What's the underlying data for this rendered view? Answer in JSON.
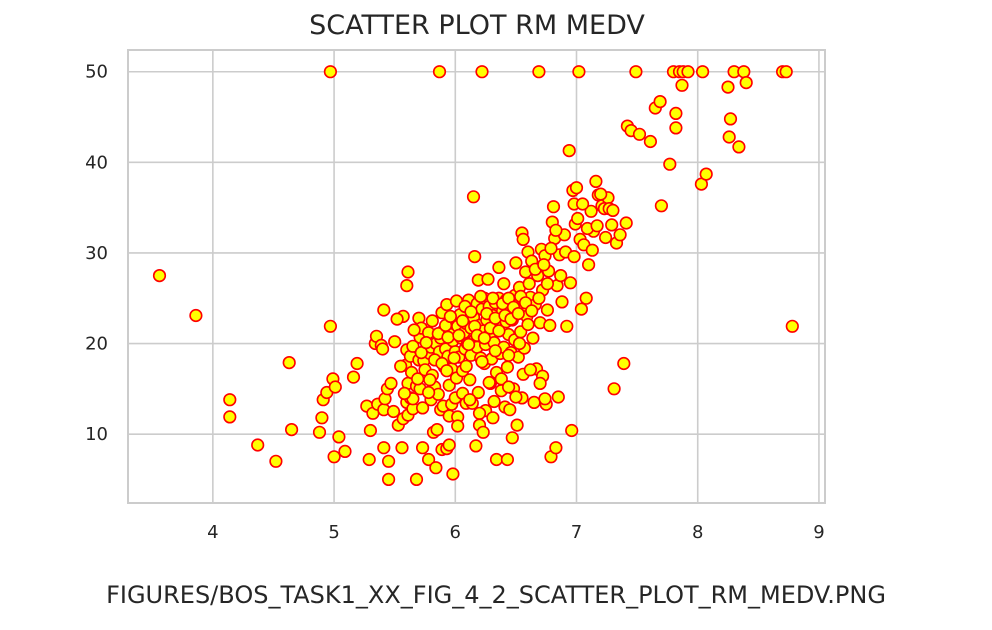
{
  "page": {
    "caption": "FIGURES/BOS_TASK1_XX_FIG_4_2_SCATTER_PLOT_RM_MEDV.PNG"
  },
  "chart_data": {
    "type": "scatter",
    "title": "SCATTER PLOT RM MEDV",
    "xlabel": "",
    "ylabel": "",
    "xlim": [
      3.3,
      9.05
    ],
    "ylim": [
      2.4,
      52.4
    ],
    "xticks": [
      4,
      5,
      6,
      7,
      8,
      9
    ],
    "yticks": [
      10,
      20,
      30,
      40,
      50
    ],
    "grid": true,
    "marker": {
      "face_color": "#ffff00",
      "edge_color": "#ff0000"
    },
    "points": [
      [
        3.56,
        27.5
      ],
      [
        3.86,
        23.1
      ],
      [
        4.14,
        13.8
      ],
      [
        4.14,
        11.9
      ],
      [
        4.37,
        8.8
      ],
      [
        4.52,
        7.0
      ],
      [
        4.63,
        17.9
      ],
      [
        4.65,
        10.5
      ],
      [
        4.88,
        10.2
      ],
      [
        4.9,
        11.8
      ],
      [
        4.91,
        13.8
      ],
      [
        4.94,
        14.6
      ],
      [
        4.97,
        21.9
      ],
      [
        4.97,
        50.0
      ],
      [
        4.99,
        16.1
      ],
      [
        5.0,
        7.5
      ],
      [
        5.01,
        15.2
      ],
      [
        5.04,
        9.7
      ],
      [
        5.09,
        8.1
      ],
      [
        5.16,
        16.3
      ],
      [
        5.19,
        17.8
      ],
      [
        5.27,
        13.1
      ],
      [
        5.29,
        7.2
      ],
      [
        5.3,
        10.4
      ],
      [
        5.32,
        12.3
      ],
      [
        5.34,
        20.0
      ],
      [
        5.35,
        20.8
      ],
      [
        5.36,
        13.3
      ],
      [
        5.39,
        19.8
      ],
      [
        5.4,
        19.4
      ],
      [
        5.41,
        8.5
      ],
      [
        5.41,
        12.7
      ],
      [
        5.41,
        23.7
      ],
      [
        5.42,
        13.9
      ],
      [
        5.44,
        15.0
      ],
      [
        5.45,
        7.0
      ],
      [
        5.45,
        5.0
      ],
      [
        5.47,
        15.6
      ],
      [
        5.5,
        20.2
      ],
      [
        5.53,
        11.0
      ],
      [
        5.56,
        8.5
      ],
      [
        5.57,
        23.0
      ],
      [
        5.57,
        11.7
      ],
      [
        5.59,
        17.6
      ],
      [
        5.6,
        13.5
      ],
      [
        5.61,
        12.1
      ],
      [
        5.6,
        19.3
      ],
      [
        5.6,
        26.4
      ],
      [
        5.61,
        27.9
      ],
      [
        5.61,
        15.6
      ],
      [
        5.63,
        14.0
      ],
      [
        5.63,
        18.6
      ],
      [
        5.64,
        16.8
      ],
      [
        5.65,
        19.7
      ],
      [
        5.65,
        12.8
      ],
      [
        5.68,
        5.0
      ],
      [
        5.68,
        15.3
      ],
      [
        5.7,
        18.2
      ],
      [
        5.7,
        22.8
      ],
      [
        5.71,
        20.7
      ],
      [
        5.71,
        15.0
      ],
      [
        5.72,
        21.7
      ],
      [
        5.73,
        8.5
      ],
      [
        5.73,
        12.9
      ],
      [
        5.74,
        18.1
      ],
      [
        5.75,
        17.1
      ],
      [
        5.76,
        19.2
      ],
      [
        5.78,
        21.2
      ],
      [
        5.78,
        7.2
      ],
      [
        5.79,
        18.9
      ],
      [
        5.8,
        19.6
      ],
      [
        5.8,
        13.8
      ],
      [
        5.81,
        22.5
      ],
      [
        5.81,
        16.5
      ],
      [
        5.82,
        10.2
      ],
      [
        5.83,
        15.2
      ],
      [
        5.84,
        20.0
      ],
      [
        5.84,
        6.3
      ],
      [
        5.85,
        10.5
      ],
      [
        5.86,
        14.4
      ],
      [
        5.87,
        19.1
      ],
      [
        5.87,
        50.0
      ],
      [
        5.88,
        12.7
      ],
      [
        5.88,
        20.6
      ],
      [
        5.89,
        23.4
      ],
      [
        5.89,
        8.3
      ],
      [
        5.9,
        13.1
      ],
      [
        5.9,
        21.4
      ],
      [
        5.91,
        17.4
      ],
      [
        5.92,
        19.4
      ],
      [
        5.93,
        24.3
      ],
      [
        5.93,
        8.4
      ],
      [
        5.94,
        18.6
      ],
      [
        5.95,
        12.0
      ],
      [
        5.95,
        15.4
      ],
      [
        5.95,
        8.8
      ],
      [
        5.96,
        21.0
      ],
      [
        5.97,
        17.2
      ],
      [
        5.97,
        13.3
      ],
      [
        5.98,
        20.3
      ],
      [
        5.98,
        5.6
      ],
      [
        5.99,
        22.8
      ],
      [
        6.0,
        19.1
      ],
      [
        6.0,
        14.0
      ],
      [
        6.01,
        24.7
      ],
      [
        6.01,
        16.2
      ],
      [
        6.02,
        11.9
      ],
      [
        6.02,
        21.9
      ],
      [
        6.03,
        18.5
      ],
      [
        6.04,
        23.2
      ],
      [
        6.05,
        20.6
      ],
      [
        6.06,
        14.5
      ],
      [
        6.06,
        17.0
      ],
      [
        6.07,
        21.2
      ],
      [
        6.08,
        19.4
      ],
      [
        6.09,
        13.4
      ],
      [
        6.09,
        22.2
      ],
      [
        6.1,
        20.0
      ],
      [
        6.11,
        24.8
      ],
      [
        6.12,
        16.0
      ],
      [
        6.13,
        21.7
      ],
      [
        6.13,
        18.7
      ],
      [
        6.14,
        13.4
      ],
      [
        6.15,
        36.2
      ],
      [
        6.15,
        22.9
      ],
      [
        6.16,
        29.6
      ],
      [
        6.16,
        20.4
      ],
      [
        6.17,
        8.7
      ],
      [
        6.18,
        24.4
      ],
      [
        6.18,
        19.6
      ],
      [
        6.19,
        14.6
      ],
      [
        6.19,
        27.0
      ],
      [
        6.2,
        22.0
      ],
      [
        6.2,
        11.0
      ],
      [
        6.21,
        18.4
      ],
      [
        6.22,
        50.0
      ],
      [
        6.22,
        23.8
      ],
      [
        6.23,
        10.2
      ],
      [
        6.23,
        21.4
      ],
      [
        6.24,
        25.0
      ],
      [
        6.24,
        17.8
      ],
      [
        6.25,
        19.9
      ],
      [
        6.25,
        12.6
      ],
      [
        6.26,
        22.6
      ],
      [
        6.27,
        27.1
      ],
      [
        6.27,
        20.8
      ],
      [
        6.28,
        24.1
      ],
      [
        6.29,
        15.6
      ],
      [
        6.3,
        21.2
      ],
      [
        6.3,
        18.3
      ],
      [
        6.31,
        23.1
      ],
      [
        6.32,
        13.6
      ],
      [
        6.32,
        20.1
      ],
      [
        6.33,
        24.5
      ],
      [
        6.34,
        7.2
      ],
      [
        6.34,
        16.8
      ],
      [
        6.35,
        22.0
      ],
      [
        6.36,
        25.0
      ],
      [
        6.36,
        28.4
      ],
      [
        6.37,
        18.9
      ],
      [
        6.38,
        21.7
      ],
      [
        6.38,
        14.8
      ],
      [
        6.39,
        23.6
      ],
      [
        6.4,
        19.6
      ],
      [
        6.4,
        26.6
      ],
      [
        6.41,
        13.0
      ],
      [
        6.42,
        22.4
      ],
      [
        6.42,
        24.8
      ],
      [
        6.43,
        7.2
      ],
      [
        6.43,
        17.4
      ],
      [
        6.44,
        21.0
      ],
      [
        6.45,
        12.7
      ],
      [
        6.45,
        23.9
      ],
      [
        6.46,
        19.0
      ],
      [
        6.47,
        9.6
      ],
      [
        6.47,
        22.6
      ],
      [
        6.48,
        15.0
      ],
      [
        6.49,
        25.3
      ],
      [
        6.49,
        20.4
      ],
      [
        6.5,
        28.9
      ],
      [
        6.51,
        11.0
      ],
      [
        6.51,
        24.2
      ],
      [
        6.52,
        18.5
      ],
      [
        6.53,
        26.2
      ],
      [
        6.54,
        21.3
      ],
      [
        6.55,
        14.0
      ],
      [
        6.55,
        32.2
      ],
      [
        6.56,
        24.0
      ],
      [
        6.56,
        31.5
      ],
      [
        6.57,
        19.5
      ],
      [
        6.58,
        27.9
      ],
      [
        6.59,
        23.0
      ],
      [
        6.6,
        30.1
      ],
      [
        6.6,
        22.1
      ],
      [
        6.62,
        25.1
      ],
      [
        6.63,
        29.1
      ],
      [
        6.64,
        20.6
      ],
      [
        6.65,
        13.5
      ],
      [
        6.66,
        24.3
      ],
      [
        6.67,
        17.2
      ],
      [
        6.68,
        27.5
      ],
      [
        6.69,
        50.0
      ],
      [
        6.7,
        22.3
      ],
      [
        6.71,
        30.4
      ],
      [
        6.72,
        16.4
      ],
      [
        6.72,
        25.9
      ],
      [
        6.74,
        29.7
      ],
      [
        6.75,
        13.3
      ],
      [
        6.76,
        23.7
      ],
      [
        6.77,
        28.0
      ],
      [
        6.78,
        22.0
      ],
      [
        6.79,
        7.5
      ],
      [
        6.8,
        33.4
      ],
      [
        6.81,
        35.1
      ],
      [
        6.82,
        31.6
      ],
      [
        6.83,
        8.5
      ],
      [
        6.84,
        26.4
      ],
      [
        6.85,
        14.1
      ],
      [
        6.86,
        29.8
      ],
      [
        6.88,
        24.6
      ],
      [
        6.9,
        32.0
      ],
      [
        6.92,
        21.9
      ],
      [
        6.94,
        41.3
      ],
      [
        6.95,
        26.7
      ],
      [
        6.96,
        10.4
      ],
      [
        6.97,
        36.9
      ],
      [
        6.98,
        35.4
      ],
      [
        6.99,
        33.2
      ],
      [
        7.0,
        37.2
      ],
      [
        7.02,
        50.0
      ],
      [
        7.03,
        31.5
      ],
      [
        7.04,
        23.8
      ],
      [
        7.06,
        30.9
      ],
      [
        7.08,
        25.0
      ],
      [
        7.1,
        28.7
      ],
      [
        7.12,
        34.6
      ],
      [
        7.14,
        32.4
      ],
      [
        7.16,
        37.9
      ],
      [
        7.18,
        36.4
      ],
      [
        7.21,
        35.2
      ],
      [
        7.24,
        31.7
      ],
      [
        7.26,
        36.1
      ],
      [
        7.29,
        33.1
      ],
      [
        7.31,
        15.0
      ],
      [
        7.33,
        31.1
      ],
      [
        7.36,
        32.0
      ],
      [
        7.39,
        17.8
      ],
      [
        7.41,
        33.3
      ],
      [
        7.42,
        44.0
      ],
      [
        7.45,
        43.5
      ],
      [
        7.49,
        50.0
      ],
      [
        7.52,
        43.1
      ],
      [
        7.61,
        42.3
      ],
      [
        7.65,
        46.0
      ],
      [
        7.69,
        46.7
      ],
      [
        7.7,
        35.2
      ],
      [
        7.77,
        39.8
      ],
      [
        7.8,
        50.0
      ],
      [
        7.82,
        43.8
      ],
      [
        7.82,
        45.4
      ],
      [
        7.85,
        50.0
      ],
      [
        7.87,
        48.5
      ],
      [
        7.88,
        50.0
      ],
      [
        7.92,
        50.0
      ],
      [
        8.03,
        37.6
      ],
      [
        8.04,
        50.0
      ],
      [
        8.07,
        38.7
      ],
      [
        8.25,
        48.3
      ],
      [
        8.26,
        42.8
      ],
      [
        8.27,
        44.8
      ],
      [
        8.3,
        50.0
      ],
      [
        8.34,
        41.7
      ],
      [
        8.38,
        50.0
      ],
      [
        8.4,
        48.8
      ],
      [
        8.7,
        50.0
      ],
      [
        8.73,
        50.0
      ],
      [
        8.78,
        21.9
      ],
      [
        5.52,
        22.7
      ],
      [
        5.55,
        17.5
      ],
      [
        5.66,
        21.5
      ],
      [
        5.69,
        16.1
      ],
      [
        5.72,
        19.0
      ],
      [
        5.76,
        20.1
      ],
      [
        5.79,
        16.0
      ],
      [
        5.83,
        18.2
      ],
      [
        5.86,
        21.1
      ],
      [
        5.89,
        17.8
      ],
      [
        5.92,
        22.0
      ],
      [
        5.94,
        20.7
      ],
      [
        5.96,
        23.0
      ],
      [
        5.99,
        18.4
      ],
      [
        6.03,
        20.9
      ],
      [
        6.06,
        22.5
      ],
      [
        6.08,
        24.1
      ],
      [
        6.11,
        19.9
      ],
      [
        6.13,
        23.5
      ],
      [
        6.16,
        21.9
      ],
      [
        6.18,
        20.9
      ],
      [
        6.21,
        25.2
      ],
      [
        6.24,
        20.6
      ],
      [
        6.26,
        23.3
      ],
      [
        6.29,
        21.7
      ],
      [
        6.31,
        25.0
      ],
      [
        6.33,
        22.8
      ],
      [
        6.36,
        21.4
      ],
      [
        6.39,
        24.4
      ],
      [
        6.41,
        23.1
      ],
      [
        6.44,
        25.0
      ],
      [
        6.46,
        22.7
      ],
      [
        6.48,
        24.0
      ],
      [
        6.52,
        23.3
      ],
      [
        6.54,
        25.2
      ],
      [
        6.58,
        24.5
      ],
      [
        6.61,
        26.6
      ],
      [
        6.63,
        23.6
      ],
      [
        6.66,
        28.2
      ],
      [
        6.69,
        25.0
      ],
      [
        6.73,
        28.7
      ],
      [
        6.76,
        26.6
      ],
      [
        6.79,
        30.5
      ],
      [
        6.83,
        32.5
      ],
      [
        6.87,
        27.5
      ],
      [
        6.91,
        30.1
      ],
      [
        6.98,
        29.6
      ],
      [
        7.01,
        33.8
      ],
      [
        7.05,
        35.4
      ],
      [
        7.09,
        32.7
      ],
      [
        7.13,
        30.3
      ],
      [
        7.17,
        33.0
      ],
      [
        7.2,
        36.5
      ],
      [
        7.23,
        34.9
      ],
      [
        7.27,
        34.9
      ],
      [
        7.3,
        34.7
      ],
      [
        6.02,
        10.9
      ],
      [
        6.12,
        13.8
      ],
      [
        6.2,
        12.3
      ],
      [
        6.28,
        15.7
      ],
      [
        6.31,
        11.8
      ],
      [
        6.38,
        16.1
      ],
      [
        6.44,
        15.2
      ],
      [
        6.5,
        14.1
      ],
      [
        6.56,
        16.6
      ],
      [
        6.62,
        17.1
      ],
      [
        6.7,
        15.6
      ],
      [
        6.74,
        13.9
      ],
      [
        6.09,
        17.5
      ],
      [
        6.22,
        18.0
      ],
      [
        6.33,
        19.2
      ],
      [
        6.44,
        18.7
      ],
      [
        6.53,
        20.0
      ],
      [
        5.93,
        17.0
      ],
      [
        5.78,
        14.6
      ],
      [
        5.65,
        13.9
      ],
      [
        5.58,
        14.5
      ],
      [
        5.49,
        12.5
      ]
    ]
  }
}
